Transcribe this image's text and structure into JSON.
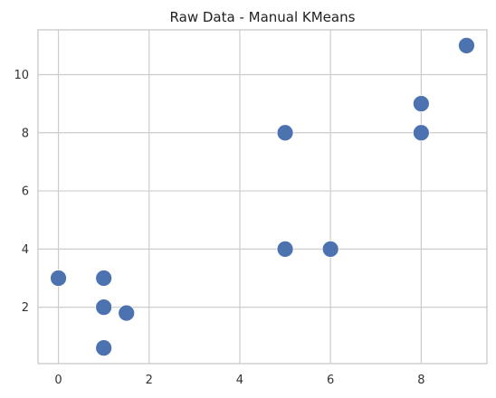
{
  "chart_data": {
    "type": "scatter",
    "title": "Raw Data - Manual KMeans",
    "xlabel": "",
    "ylabel": "",
    "xlim": [
      -0.45,
      9.45
    ],
    "ylim": [
      0.06,
      11.54
    ],
    "x_ticks": [
      0,
      2,
      4,
      6,
      8
    ],
    "y_ticks": [
      2,
      4,
      6,
      8,
      10
    ],
    "grid": true,
    "legend": "none",
    "marker_color": "#4c72b0",
    "series": [
      {
        "points": [
          {
            "x": 0,
            "y": 3
          },
          {
            "x": 1,
            "y": 3
          },
          {
            "x": 1,
            "y": 2
          },
          {
            "x": 1.5,
            "y": 1.8
          },
          {
            "x": 1,
            "y": 0.6
          },
          {
            "x": 5,
            "y": 4
          },
          {
            "x": 6,
            "y": 4
          },
          {
            "x": 5,
            "y": 8
          },
          {
            "x": 8,
            "y": 8
          },
          {
            "x": 8,
            "y": 9
          },
          {
            "x": 9,
            "y": 11
          }
        ]
      }
    ]
  }
}
